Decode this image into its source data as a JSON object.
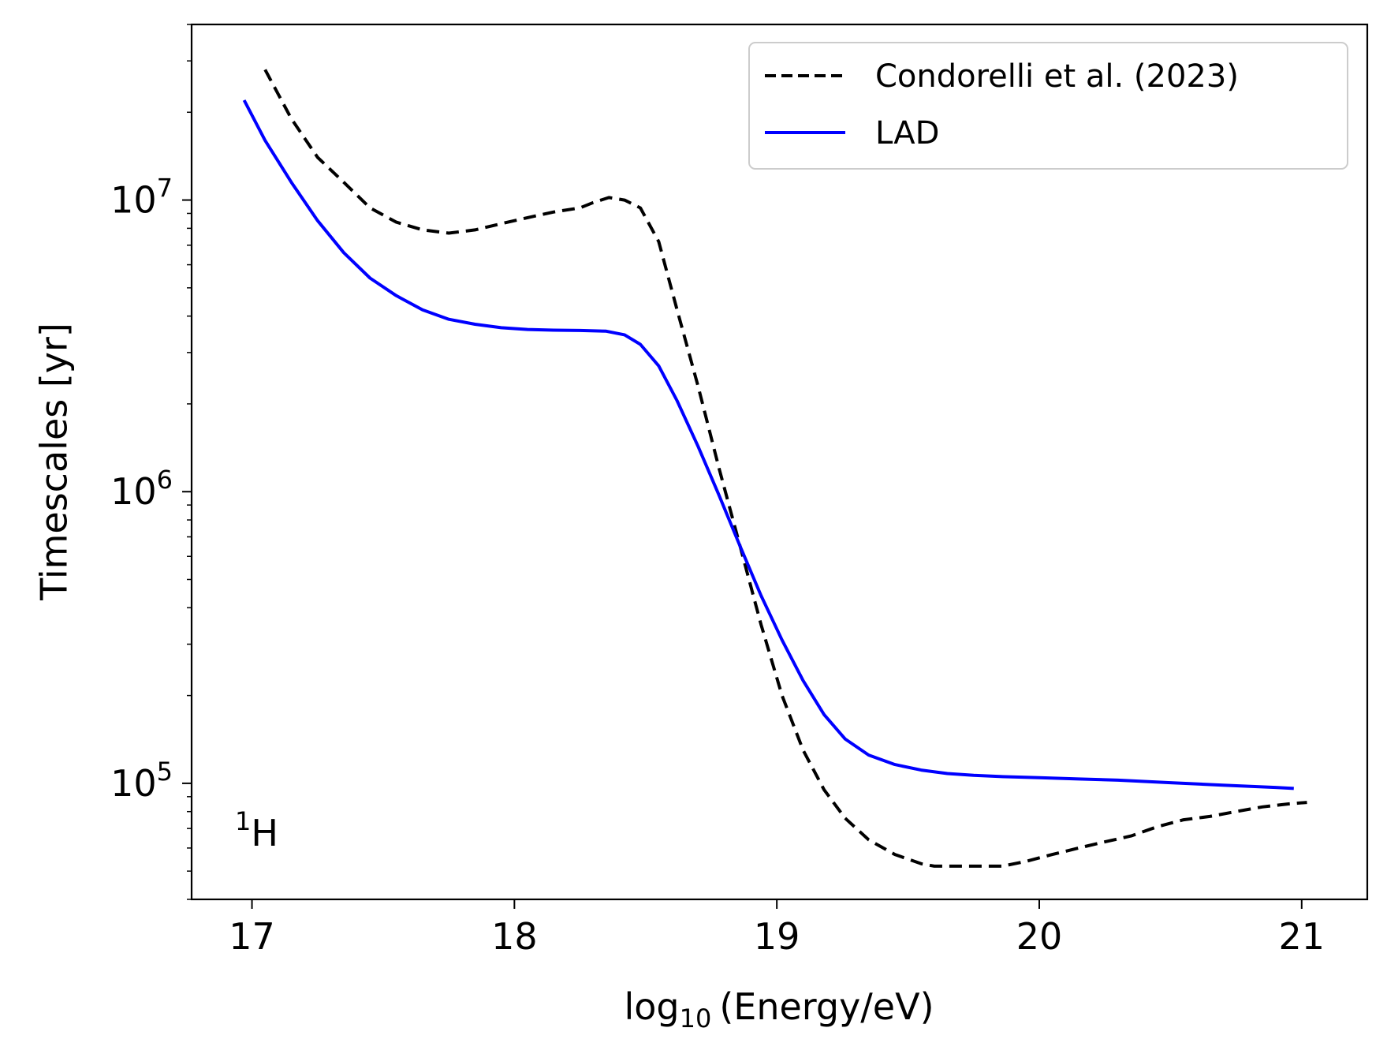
{
  "chart_data": {
    "type": "line",
    "xlabel_main": "log",
    "xlabel_sub": "10",
    "xlabel_rest": "(Energy/eV)",
    "ylabel": "Timescales [yr]",
    "xlim": [
      16.77,
      21.25
    ],
    "ylim": [
      40000,
      40000000
    ],
    "yscale": "log",
    "xticks": [
      "17",
      "18",
      "19",
      "20",
      "21"
    ],
    "yticks": [
      {
        "base": "10",
        "exp": "5",
        "value": 100000
      },
      {
        "base": "10",
        "exp": "6",
        "value": 1000000
      },
      {
        "base": "10",
        "exp": "7",
        "value": 10000000
      }
    ],
    "legend_placement": "upper right",
    "annotation": {
      "sup": "1",
      "text": "H"
    },
    "series": [
      {
        "name": "Condorelli et al. (2023)",
        "style": "dashed",
        "color": "#000000",
        "x": [
          17.05,
          17.15,
          17.25,
          17.35,
          17.45,
          17.55,
          17.65,
          17.75,
          17.85,
          17.95,
          18.05,
          18.15,
          18.25,
          18.3,
          18.36,
          18.42,
          18.48,
          18.55,
          18.62,
          18.7,
          18.78,
          18.86,
          18.94,
          19.02,
          19.1,
          19.18,
          19.26,
          19.35,
          19.45,
          19.55,
          19.6,
          19.7,
          19.8,
          19.86,
          19.95,
          20.05,
          20.15,
          20.25,
          20.35,
          20.45,
          20.55,
          20.65,
          20.75,
          20.85,
          20.95,
          21.02
        ],
        "y": [
          28000000,
          19000000,
          14000000,
          11500000,
          9400000,
          8400000,
          7900000,
          7700000,
          7900000,
          8300000,
          8700000,
          9100000,
          9400000,
          9800000,
          10200000,
          10000000,
          9400000,
          7200000,
          4200000,
          2300000,
          1200000,
          650000,
          350000,
          200000,
          130000,
          95000,
          76000,
          64000,
          57000,
          53000,
          52000,
          52000,
          52000,
          52000,
          54000,
          57000,
          60000,
          63000,
          66000,
          71000,
          75000,
          77000,
          80000,
          83000,
          85000,
          86000
        ]
      },
      {
        "name": "LAD",
        "style": "solid",
        "color": "#0000ff",
        "x": [
          16.97,
          17.05,
          17.15,
          17.25,
          17.35,
          17.45,
          17.55,
          17.65,
          17.75,
          17.85,
          17.95,
          18.05,
          18.15,
          18.25,
          18.35,
          18.42,
          18.48,
          18.55,
          18.62,
          18.7,
          18.78,
          18.86,
          18.94,
          19.02,
          19.1,
          19.18,
          19.26,
          19.35,
          19.45,
          19.55,
          19.65,
          19.75,
          19.85,
          20.0,
          20.15,
          20.3,
          20.5,
          20.7,
          20.9,
          20.97
        ],
        "y": [
          22000000,
          16000000,
          11500000,
          8500000,
          6600000,
          5400000,
          4700000,
          4200000,
          3900000,
          3750000,
          3650000,
          3600000,
          3580000,
          3570000,
          3550000,
          3450000,
          3200000,
          2700000,
          2050000,
          1430000,
          970000,
          650000,
          440000,
          310000,
          225000,
          172000,
          142000,
          125000,
          116000,
          111000,
          108000,
          106500,
          105500,
          104500,
          103500,
          102500,
          100500,
          98500,
          96800,
          96000
        ]
      }
    ]
  }
}
